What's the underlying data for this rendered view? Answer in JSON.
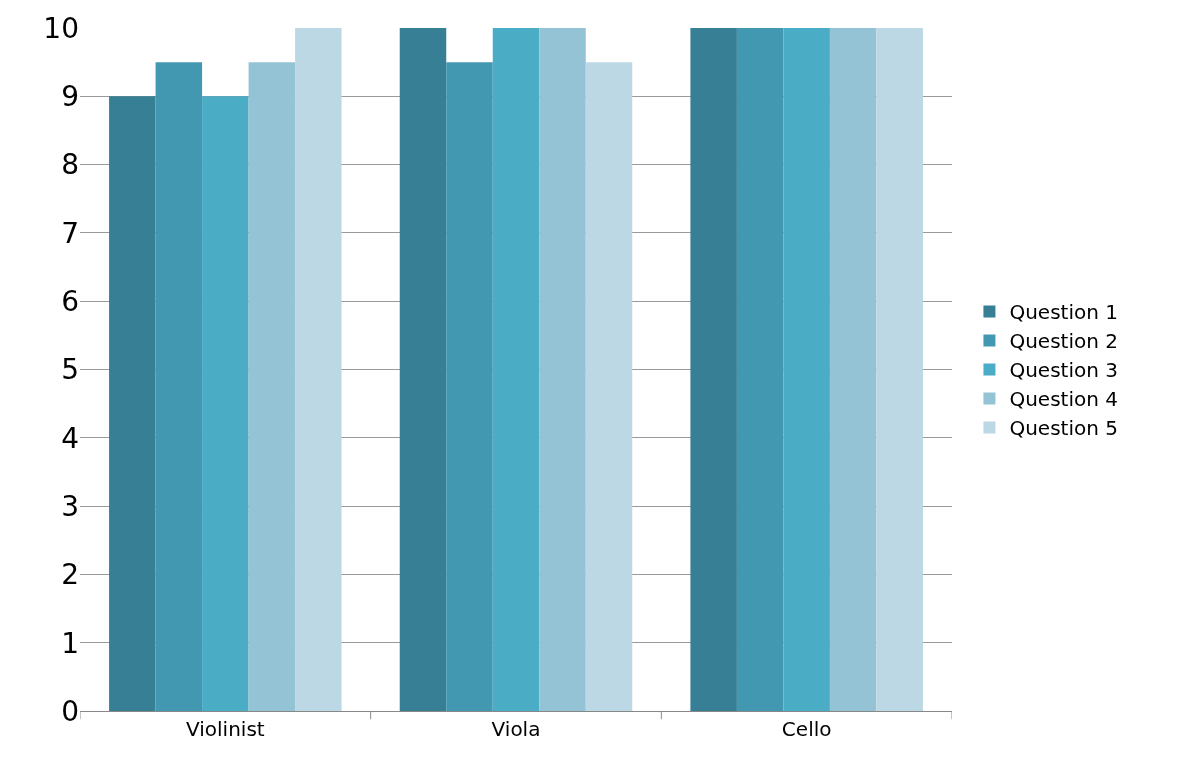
{
  "chart_data": {
    "type": "bar",
    "categories": [
      "Violinist",
      "Viola",
      "Cello"
    ],
    "series": [
      {
        "name": "Question 1",
        "color": "#377f94",
        "values": [
          9,
          10,
          10
        ]
      },
      {
        "name": "Question 2",
        "color": "#4298b0",
        "values": [
          9.5,
          9.5,
          10
        ]
      },
      {
        "name": "Question 3",
        "color": "#4bacc6",
        "values": [
          9,
          10,
          10
        ]
      },
      {
        "name": "Question 4",
        "color": "#93c3d5",
        "values": [
          9.5,
          10,
          10
        ]
      },
      {
        "name": "Question 5",
        "color": "#bcd8e4",
        "values": [
          10,
          9.5,
          10
        ]
      }
    ],
    "ylim": [
      0,
      10
    ],
    "yticks": [
      0,
      1,
      2,
      3,
      4,
      5,
      6,
      7,
      8,
      9,
      10
    ],
    "grid": "y",
    "legend": "right"
  }
}
